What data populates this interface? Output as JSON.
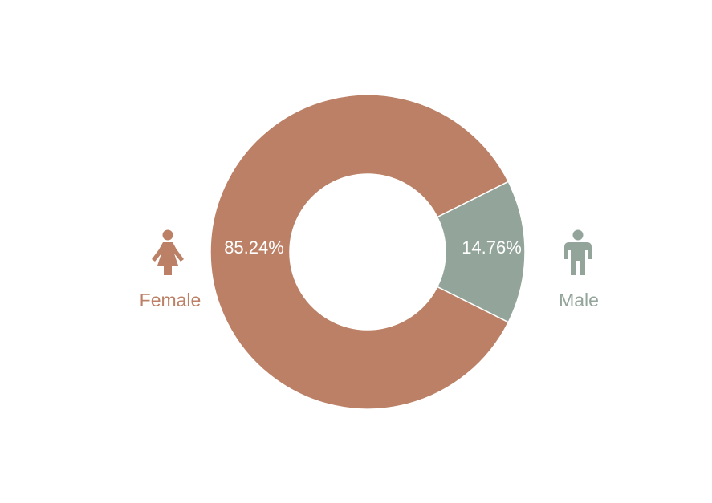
{
  "chart_data": {
    "type": "pie",
    "donut": true,
    "categories": [
      "Female",
      "Male"
    ],
    "values": [
      85.24,
      14.76
    ],
    "value_labels": [
      "85.24%",
      "14.76%"
    ],
    "colors": [
      "#bb8065",
      "#93a59a"
    ],
    "title": "",
    "legend_placement": "sides",
    "icons": [
      "female-person-icon",
      "male-person-icon"
    ]
  }
}
